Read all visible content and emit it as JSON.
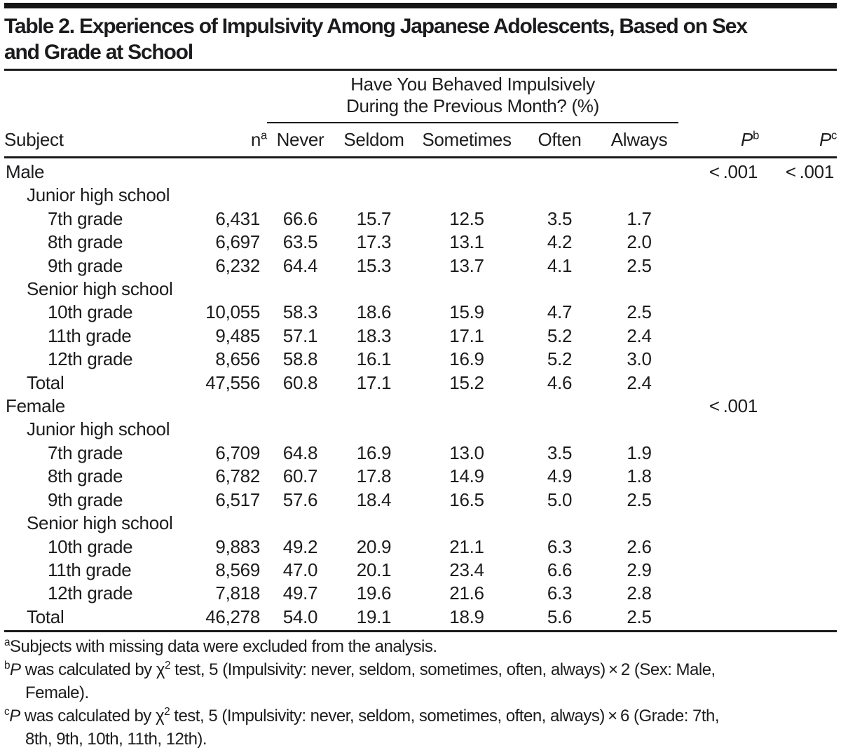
{
  "title": "Table 2. Experiences of Impulsivity Among Japanese Adolescents, Based on Sex\nand Grade at School",
  "table": {
    "spanner_header": "Have You Behaved Impulsively\nDuring the Previous Month? (%)",
    "columns": {
      "subject": "Subject",
      "n_label": "n",
      "n_sup": "a",
      "never": "Never",
      "seldom": "Seldom",
      "sometimes": "Sometimes",
      "often": "Often",
      "always": "Always",
      "p_label": "P",
      "p_b_sup": "b",
      "p_c_sup": "c"
    },
    "rows": [
      {
        "label": "Male",
        "indent": 0,
        "n": "",
        "never": "",
        "seldom": "",
        "sometimes": "",
        "often": "",
        "always": "",
        "pb": "< .001",
        "pc": "< .001"
      },
      {
        "label": "Junior high school",
        "indent": 1,
        "n": "",
        "never": "",
        "seldom": "",
        "sometimes": "",
        "often": "",
        "always": "",
        "pb": "",
        "pc": ""
      },
      {
        "label": "7th grade",
        "indent": 2,
        "n": "6,431",
        "never": "66.6",
        "seldom": "15.7",
        "sometimes": "12.5",
        "often": "3.5",
        "always": "1.7",
        "pb": "",
        "pc": ""
      },
      {
        "label": "8th grade",
        "indent": 2,
        "n": "6,697",
        "never": "63.5",
        "seldom": "17.3",
        "sometimes": "13.1",
        "often": "4.2",
        "always": "2.0",
        "pb": "",
        "pc": ""
      },
      {
        "label": "9th grade",
        "indent": 2,
        "n": "6,232",
        "never": "64.4",
        "seldom": "15.3",
        "sometimes": "13.7",
        "often": "4.1",
        "always": "2.5",
        "pb": "",
        "pc": ""
      },
      {
        "label": "Senior high school",
        "indent": 1,
        "n": "",
        "never": "",
        "seldom": "",
        "sometimes": "",
        "often": "",
        "always": "",
        "pb": "",
        "pc": ""
      },
      {
        "label": "10th grade",
        "indent": 2,
        "n": "10,055",
        "never": "58.3",
        "seldom": "18.6",
        "sometimes": "15.9",
        "often": "4.7",
        "always": "2.5",
        "pb": "",
        "pc": ""
      },
      {
        "label": "11th grade",
        "indent": 2,
        "n": "9,485",
        "never": "57.1",
        "seldom": "18.3",
        "sometimes": "17.1",
        "often": "5.2",
        "always": "2.4",
        "pb": "",
        "pc": ""
      },
      {
        "label": "12th grade",
        "indent": 2,
        "n": "8,656",
        "never": "58.8",
        "seldom": "16.1",
        "sometimes": "16.9",
        "often": "5.2",
        "always": "3.0",
        "pb": "",
        "pc": ""
      },
      {
        "label": "Total",
        "indent": 1,
        "n": "47,556",
        "never": "60.8",
        "seldom": "17.1",
        "sometimes": "15.2",
        "often": "4.6",
        "always": "2.4",
        "pb": "",
        "pc": ""
      },
      {
        "label": "Female",
        "indent": 0,
        "n": "",
        "never": "",
        "seldom": "",
        "sometimes": "",
        "often": "",
        "always": "",
        "pb": "< .001",
        "pc": ""
      },
      {
        "label": "Junior high school",
        "indent": 1,
        "n": "",
        "never": "",
        "seldom": "",
        "sometimes": "",
        "often": "",
        "always": "",
        "pb": "",
        "pc": ""
      },
      {
        "label": "7th grade",
        "indent": 2,
        "n": "6,709",
        "never": "64.8",
        "seldom": "16.9",
        "sometimes": "13.0",
        "often": "3.5",
        "always": "1.9",
        "pb": "",
        "pc": ""
      },
      {
        "label": "8th grade",
        "indent": 2,
        "n": "6,782",
        "never": "60.7",
        "seldom": "17.8",
        "sometimes": "14.9",
        "often": "4.9",
        "always": "1.8",
        "pb": "",
        "pc": ""
      },
      {
        "label": "9th grade",
        "indent": 2,
        "n": "6,517",
        "never": "57.6",
        "seldom": "18.4",
        "sometimes": "16.5",
        "often": "5.0",
        "always": "2.5",
        "pb": "",
        "pc": ""
      },
      {
        "label": "Senior high school",
        "indent": 1,
        "n": "",
        "never": "",
        "seldom": "",
        "sometimes": "",
        "often": "",
        "always": "",
        "pb": "",
        "pc": ""
      },
      {
        "label": "10th grade",
        "indent": 2,
        "n": "9,883",
        "never": "49.2",
        "seldom": "20.9",
        "sometimes": "21.1",
        "often": "6.3",
        "always": "2.6",
        "pb": "",
        "pc": ""
      },
      {
        "label": "11th grade",
        "indent": 2,
        "n": "8,569",
        "never": "47.0",
        "seldom": "20.1",
        "sometimes": "23.4",
        "often": "6.6",
        "always": "2.9",
        "pb": "",
        "pc": ""
      },
      {
        "label": "12th grade",
        "indent": 2,
        "n": "7,818",
        "never": "49.7",
        "seldom": "19.6",
        "sometimes": "21.6",
        "often": "6.3",
        "always": "2.8",
        "pb": "",
        "pc": ""
      },
      {
        "label": "Total",
        "indent": 1,
        "n": "46,278",
        "never": "54.0",
        "seldom": "19.1",
        "sometimes": "18.9",
        "often": "5.6",
        "always": "2.5",
        "pb": "",
        "pc": ""
      }
    ]
  },
  "footnotes": [
    {
      "segments": [
        {
          "style": "sup",
          "text": "a"
        },
        {
          "style": "normal",
          "text": "Subjects with missing data were excluded from the analysis."
        }
      ]
    },
    {
      "segments": [
        {
          "style": "sup",
          "text": "b"
        },
        {
          "style": "italic",
          "text": "P"
        },
        {
          "style": "normal",
          "text": " was calculated by χ"
        },
        {
          "style": "sup",
          "text": "2"
        },
        {
          "style": "normal",
          "text": " test, 5 (Impulsivity: never, seldom, sometimes, often, always) × 2 (Sex: Male,\nFemale)."
        }
      ]
    },
    {
      "segments": [
        {
          "style": "sup",
          "text": "c"
        },
        {
          "style": "italic",
          "text": "P"
        },
        {
          "style": "normal",
          "text": " was calculated by χ"
        },
        {
          "style": "sup",
          "text": "2"
        },
        {
          "style": "normal",
          "text": " test, 5 (Impulsivity: never, seldom, sometimes, often, always) × 6 (Grade: 7th,\n8th, 9th, 10th, 11th, 12th)."
        }
      ]
    }
  ]
}
